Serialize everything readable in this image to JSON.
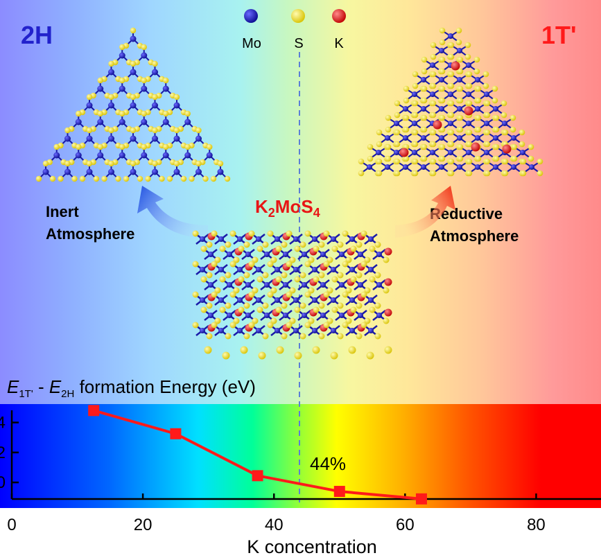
{
  "phase_left": {
    "label": "2H",
    "color": "#2222cc"
  },
  "phase_right": {
    "label": "1T'",
    "color": "#ff1a1a"
  },
  "legend": [
    {
      "label": "Mo",
      "color": "#1a1aa8"
    },
    {
      "label": "S",
      "color": "#f2e21a"
    },
    {
      "label": "K",
      "color": "#e01515"
    }
  ],
  "left_process": {
    "line1": "Inert",
    "line2": "Atmosphere"
  },
  "right_process": {
    "line1": "Reductive",
    "line2": "Atmosphere"
  },
  "compound": {
    "base1": "K",
    "sub1": "2",
    "base2": "MoS",
    "sub2": "4"
  },
  "energy_title": {
    "e1": "E",
    "sub1": "1T'",
    "dash": " - ",
    "e2": "E",
    "sub2": "2H",
    "rest": " formation  Energy  (eV)"
  },
  "chart_data": {
    "type": "line",
    "xlabel": "K concentration",
    "ylabel": "",
    "xlim": [
      0,
      90
    ],
    "ylim": [
      -1.2,
      5
    ],
    "xticks": [
      0,
      20,
      40,
      60,
      80
    ],
    "yticks": [
      0,
      2,
      4
    ],
    "x": [
      12.5,
      25,
      37.5,
      50,
      62.5
    ],
    "y": [
      4.8,
      3.25,
      0.45,
      -0.6,
      -1.1
    ],
    "series": [
      {
        "color": "#ff1a1a",
        "marker": "square"
      }
    ],
    "annotation": {
      "text": "44%",
      "x": 44
    },
    "threshold_line_x": 44
  }
}
